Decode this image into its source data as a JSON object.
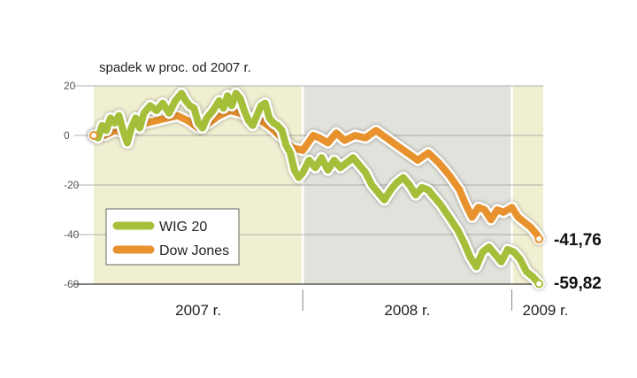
{
  "chart_data": {
    "type": "line",
    "subtitle": "spadek w proc. od 2007 r.",
    "ylim": [
      -60,
      20
    ],
    "yticks": [
      20,
      0,
      -20,
      -40,
      -60
    ],
    "x_range": [
      2007.0,
      2009.15
    ],
    "periods": [
      {
        "label": "2007 r.",
        "start": 2007.0,
        "end": 2008.0,
        "color": "#f1efd2"
      },
      {
        "label": "2008 r.",
        "start": 2008.0,
        "end": 2009.0,
        "color": "#e2e2dc"
      },
      {
        "label": "2009 r.",
        "start": 2009.0,
        "end": 2009.15,
        "color": "#f1efd2"
      }
    ],
    "series": [
      {
        "name": "WIG 20",
        "color": "#a6bf3a",
        "end_label": "-59,82",
        "points": [
          [
            2007.0,
            0
          ],
          [
            2007.02,
            -1
          ],
          [
            2007.04,
            4
          ],
          [
            2007.06,
            2
          ],
          [
            2007.08,
            7
          ],
          [
            2007.1,
            5
          ],
          [
            2007.12,
            8
          ],
          [
            2007.14,
            2
          ],
          [
            2007.16,
            -3
          ],
          [
            2007.18,
            3
          ],
          [
            2007.2,
            7
          ],
          [
            2007.22,
            3
          ],
          [
            2007.24,
            9
          ],
          [
            2007.27,
            12
          ],
          [
            2007.3,
            10
          ],
          [
            2007.33,
            13
          ],
          [
            2007.36,
            9
          ],
          [
            2007.39,
            14
          ],
          [
            2007.42,
            17
          ],
          [
            2007.44,
            14
          ],
          [
            2007.46,
            12
          ],
          [
            2007.48,
            11
          ],
          [
            2007.5,
            5
          ],
          [
            2007.52,
            3
          ],
          [
            2007.54,
            7
          ],
          [
            2007.57,
            10
          ],
          [
            2007.6,
            14
          ],
          [
            2007.62,
            11
          ],
          [
            2007.64,
            16
          ],
          [
            2007.66,
            12
          ],
          [
            2007.68,
            17
          ],
          [
            2007.7,
            15
          ],
          [
            2007.72,
            10
          ],
          [
            2007.74,
            6
          ],
          [
            2007.76,
            4
          ],
          [
            2007.78,
            8
          ],
          [
            2007.8,
            12
          ],
          [
            2007.82,
            13
          ],
          [
            2007.84,
            7
          ],
          [
            2007.86,
            5
          ],
          [
            2007.88,
            4
          ],
          [
            2007.9,
            2
          ],
          [
            2007.92,
            -4
          ],
          [
            2007.94,
            -7
          ],
          [
            2007.96,
            -14
          ],
          [
            2007.98,
            -17
          ],
          [
            2008.0,
            -15
          ],
          [
            2008.03,
            -10
          ],
          [
            2008.06,
            -13
          ],
          [
            2008.09,
            -9
          ],
          [
            2008.12,
            -14
          ],
          [
            2008.15,
            -10
          ],
          [
            2008.18,
            -13
          ],
          [
            2008.21,
            -11
          ],
          [
            2008.24,
            -9
          ],
          [
            2008.27,
            -12
          ],
          [
            2008.3,
            -15
          ],
          [
            2008.33,
            -20
          ],
          [
            2008.36,
            -23
          ],
          [
            2008.39,
            -26
          ],
          [
            2008.42,
            -22
          ],
          [
            2008.45,
            -19
          ],
          [
            2008.48,
            -17
          ],
          [
            2008.51,
            -20
          ],
          [
            2008.54,
            -24
          ],
          [
            2008.57,
            -21
          ],
          [
            2008.6,
            -22
          ],
          [
            2008.63,
            -25
          ],
          [
            2008.66,
            -28
          ],
          [
            2008.7,
            -33
          ],
          [
            2008.74,
            -38
          ],
          [
            2008.77,
            -43
          ],
          [
            2008.8,
            -49
          ],
          [
            2008.83,
            -53
          ],
          [
            2008.86,
            -47
          ],
          [
            2008.89,
            -45
          ],
          [
            2008.92,
            -48
          ],
          [
            2008.95,
            -51
          ],
          [
            2008.98,
            -46
          ],
          [
            2009.01,
            -47
          ],
          [
            2009.04,
            -50
          ],
          [
            2009.07,
            -55
          ],
          [
            2009.1,
            -57
          ],
          [
            2009.13,
            -59.82
          ]
        ]
      },
      {
        "name": "Dow Jones",
        "color": "#e8922e",
        "end_label": "-41,76",
        "points": [
          [
            2007.0,
            0
          ],
          [
            2007.05,
            0
          ],
          [
            2007.1,
            2
          ],
          [
            2007.15,
            1
          ],
          [
            2007.2,
            4
          ],
          [
            2007.25,
            5
          ],
          [
            2007.3,
            6
          ],
          [
            2007.35,
            7
          ],
          [
            2007.4,
            8
          ],
          [
            2007.45,
            6
          ],
          [
            2007.5,
            3
          ],
          [
            2007.55,
            5
          ],
          [
            2007.6,
            8
          ],
          [
            2007.65,
            10
          ],
          [
            2007.7,
            9
          ],
          [
            2007.75,
            7
          ],
          [
            2007.8,
            6
          ],
          [
            2007.85,
            3
          ],
          [
            2007.9,
            -1
          ],
          [
            2007.95,
            -5
          ],
          [
            2008.0,
            -6
          ],
          [
            2008.05,
            0
          ],
          [
            2008.08,
            -1
          ],
          [
            2008.12,
            -3
          ],
          [
            2008.16,
            1
          ],
          [
            2008.2,
            -2
          ],
          [
            2008.25,
            0
          ],
          [
            2008.3,
            -1
          ],
          [
            2008.35,
            2
          ],
          [
            2008.4,
            -1
          ],
          [
            2008.45,
            -4
          ],
          [
            2008.5,
            -7
          ],
          [
            2008.55,
            -10
          ],
          [
            2008.6,
            -7
          ],
          [
            2008.65,
            -11
          ],
          [
            2008.7,
            -16
          ],
          [
            2008.75,
            -22
          ],
          [
            2008.78,
            -28
          ],
          [
            2008.81,
            -33
          ],
          [
            2008.84,
            -29
          ],
          [
            2008.87,
            -30
          ],
          [
            2008.9,
            -34
          ],
          [
            2008.93,
            -30
          ],
          [
            2008.96,
            -31
          ],
          [
            2009.0,
            -29
          ],
          [
            2009.03,
            -33
          ],
          [
            2009.06,
            -35
          ],
          [
            2009.09,
            -37
          ],
          [
            2009.12,
            -40
          ],
          [
            2009.13,
            -41.76
          ]
        ]
      }
    ]
  }
}
